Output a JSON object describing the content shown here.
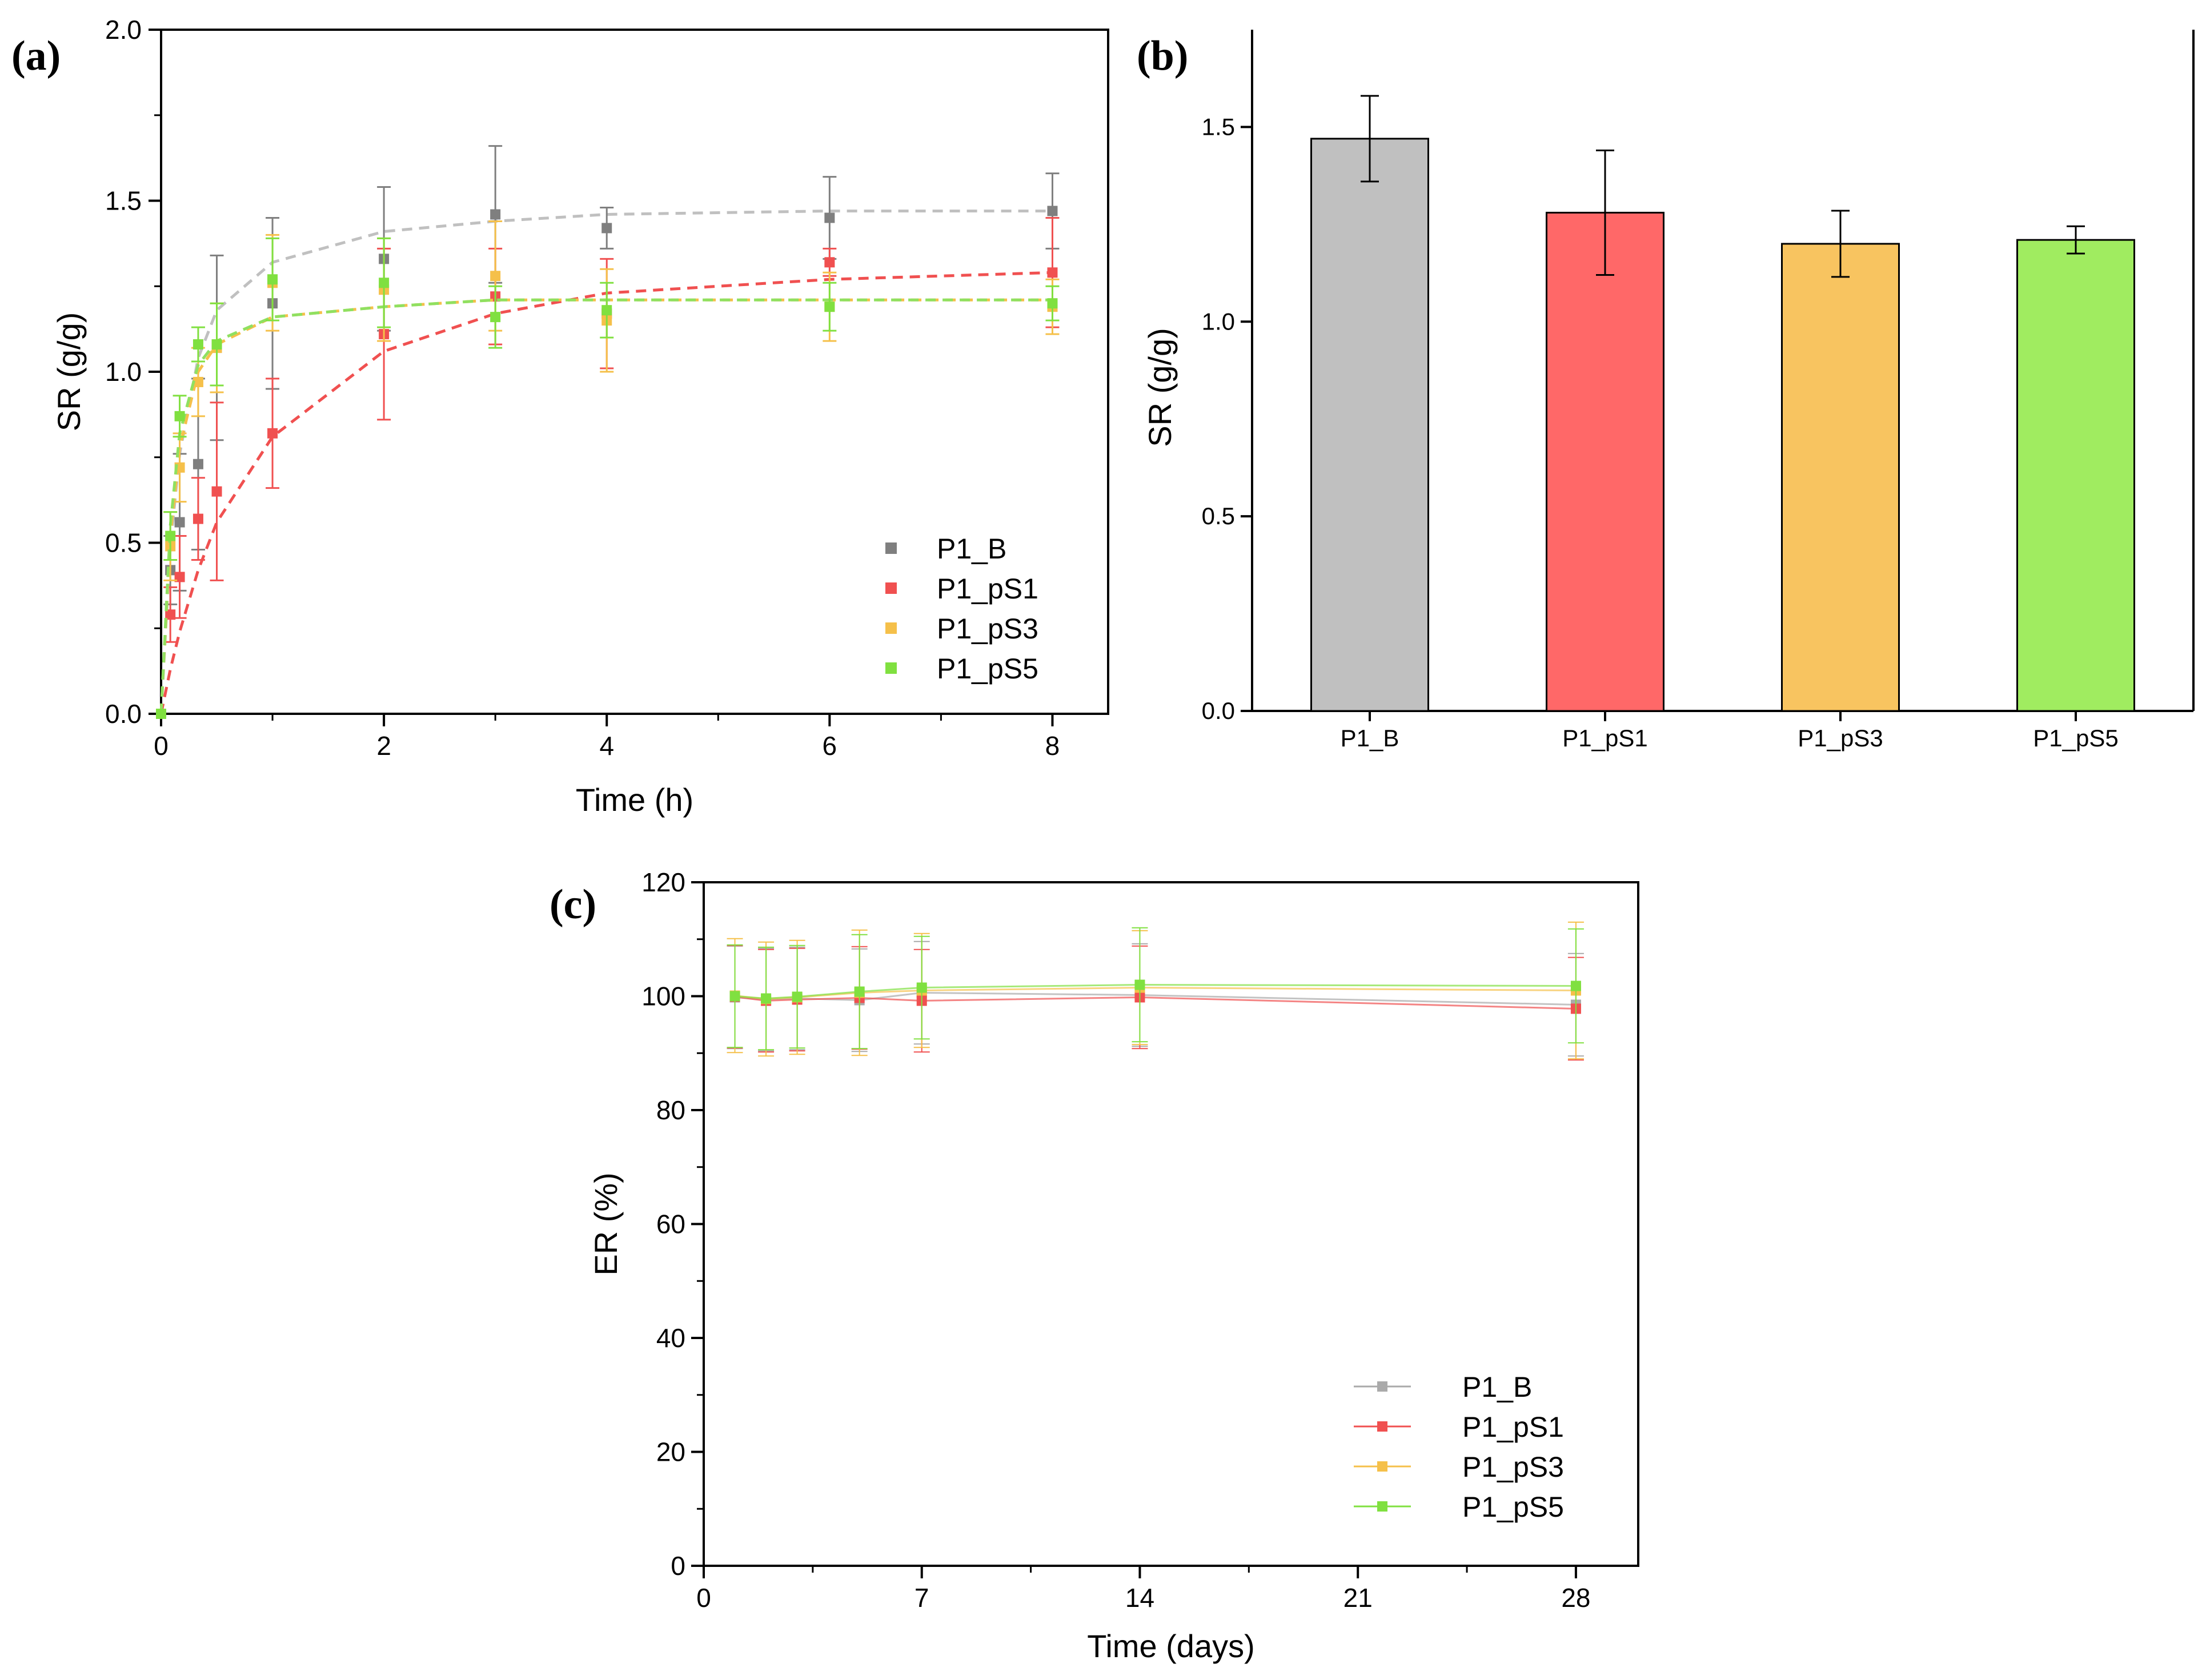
{
  "chart_data": [
    {
      "panel": "(a)",
      "type": "line",
      "xlabel": "Time (h)",
      "ylabel": "SR (g/g)",
      "xlim": [
        0,
        8.5
      ],
      "ylim": [
        0,
        2.0
      ],
      "xticks": [
        0,
        2,
        4,
        6,
        8
      ],
      "yticks": [
        0.0,
        0.5,
        1.0,
        1.5,
        2.0
      ],
      "ytick_labels": [
        "0.0",
        "0.5",
        "1.0",
        "1.5",
        "2.0"
      ],
      "legend_position": "bottom-right",
      "series": [
        {
          "name": "P1_B",
          "color": "#7f7f7f",
          "fit_color": "#c0c0c0",
          "x": [
            0,
            0.083,
            0.167,
            0.333,
            0.5,
            1,
            2,
            3,
            4,
            6,
            8
          ],
          "y": [
            0.0,
            0.42,
            0.56,
            0.73,
            1.07,
            1.2,
            1.33,
            1.46,
            1.42,
            1.45,
            1.47
          ],
          "err": [
            0.0,
            0.1,
            0.2,
            0.25,
            0.27,
            0.25,
            0.21,
            0.2,
            0.06,
            0.12,
            0.11
          ],
          "fit": [
            0.0,
            0.49,
            0.76,
            1.04,
            1.18,
            1.32,
            1.41,
            1.44,
            1.46,
            1.47,
            1.47
          ]
        },
        {
          "name": "P1_pS1",
          "color": "#f05050",
          "fit_color": "#f05050",
          "x": [
            0,
            0.083,
            0.167,
            0.333,
            0.5,
            1,
            2,
            3,
            4,
            6,
            8
          ],
          "y": [
            0.0,
            0.29,
            0.4,
            0.57,
            0.65,
            0.82,
            1.11,
            1.22,
            1.17,
            1.32,
            1.29
          ],
          "err": [
            0.0,
            0.08,
            0.12,
            0.12,
            0.26,
            0.16,
            0.25,
            0.14,
            0.16,
            0.04,
            0.16
          ],
          "fit": [
            0.0,
            0.13,
            0.24,
            0.42,
            0.56,
            0.81,
            1.06,
            1.17,
            1.23,
            1.27,
            1.29
          ]
        },
        {
          "name": "P1_pS3",
          "color": "#f5c04a",
          "fit_color": "#f5c04a",
          "x": [
            0,
            0.083,
            0.167,
            0.333,
            0.5,
            1,
            2,
            3,
            4,
            6,
            8
          ],
          "y": [
            0.0,
            0.49,
            0.72,
            0.97,
            1.07,
            1.26,
            1.24,
            1.28,
            1.15,
            1.19,
            1.19
          ],
          "err": [
            0.0,
            0.1,
            0.1,
            0.1,
            0.13,
            0.14,
            0.15,
            0.16,
            0.15,
            0.1,
            0.08
          ],
          "fit": [
            0.0,
            0.52,
            0.78,
            1.0,
            1.08,
            1.16,
            1.19,
            1.21,
            1.21,
            1.21,
            1.21
          ]
        },
        {
          "name": "P1_pS5",
          "color": "#80e040",
          "fit_color": "#90e060",
          "x": [
            0,
            0.083,
            0.167,
            0.333,
            0.5,
            1,
            2,
            3,
            4,
            6,
            8
          ],
          "y": [
            0.0,
            0.52,
            0.87,
            1.08,
            1.08,
            1.27,
            1.26,
            1.16,
            1.18,
            1.19,
            1.2
          ],
          "err": [
            0.0,
            0.07,
            0.06,
            0.05,
            0.12,
            0.12,
            0.13,
            0.09,
            0.08,
            0.07,
            0.05
          ],
          "fit": [
            0.0,
            0.55,
            0.82,
            1.02,
            1.09,
            1.16,
            1.19,
            1.21,
            1.21,
            1.21,
            1.21
          ]
        }
      ]
    },
    {
      "panel": "(b)",
      "type": "bar",
      "ylabel": "SR (g/g)",
      "ylim": [
        0,
        1.75
      ],
      "yticks": [
        0.0,
        0.5,
        1.0,
        1.5
      ],
      "ytick_labels": [
        "0.0",
        "0.5",
        "1.0",
        "1.5"
      ],
      "categories": [
        "P1_B",
        "P1_pS1",
        "P1_pS3",
        "P1_pS5"
      ],
      "values": [
        1.47,
        1.28,
        1.2,
        1.21
      ],
      "errors": [
        0.11,
        0.16,
        0.085,
        0.035
      ],
      "colors": [
        "#c0c0c0",
        "#ff6868",
        "#f8c460",
        "#a0ec60"
      ]
    },
    {
      "panel": "(c)",
      "type": "line",
      "xlabel": "Time (days)",
      "ylabel": "ER (%)",
      "xlim": [
        0,
        30
      ],
      "ylim": [
        0,
        120
      ],
      "xticks": [
        0,
        7,
        14,
        21,
        28
      ],
      "yticks": [
        0,
        20,
        40,
        60,
        80,
        100,
        120
      ],
      "legend_position": "bottom-right",
      "series": [
        {
          "name": "P1_B",
          "color": "#aaaaaa",
          "x": [
            1,
            2,
            3,
            5,
            7,
            14,
            28
          ],
          "y": [
            99.8,
            99.4,
            99.6,
            99.3,
            100.6,
            100.2,
            98.5
          ],
          "err": [
            9,
            9,
            9,
            9,
            9,
            9,
            9
          ]
        },
        {
          "name": "P1_pS1",
          "color": "#f05050",
          "x": [
            1,
            2,
            3,
            5,
            7,
            14,
            28
          ],
          "y": [
            99.9,
            99.2,
            99.4,
            99.7,
            99.2,
            99.8,
            97.8
          ],
          "err": [
            9,
            9,
            9,
            9,
            9,
            9,
            9
          ]
        },
        {
          "name": "P1_pS3",
          "color": "#f5c04a",
          "x": [
            1,
            2,
            3,
            5,
            7,
            14,
            28
          ],
          "y": [
            100.1,
            99.5,
            99.8,
            100.6,
            101.0,
            101.5,
            101.0
          ],
          "err": [
            10,
            10,
            10,
            11,
            10,
            10,
            12
          ]
        },
        {
          "name": "P1_pS5",
          "color": "#80e040",
          "x": [
            1,
            2,
            3,
            5,
            7,
            14,
            28
          ],
          "y": [
            100.0,
            99.6,
            99.9,
            100.8,
            101.5,
            102.0,
            101.8
          ],
          "err": [
            9,
            9,
            9,
            10,
            9,
            10,
            10
          ]
        }
      ]
    }
  ]
}
